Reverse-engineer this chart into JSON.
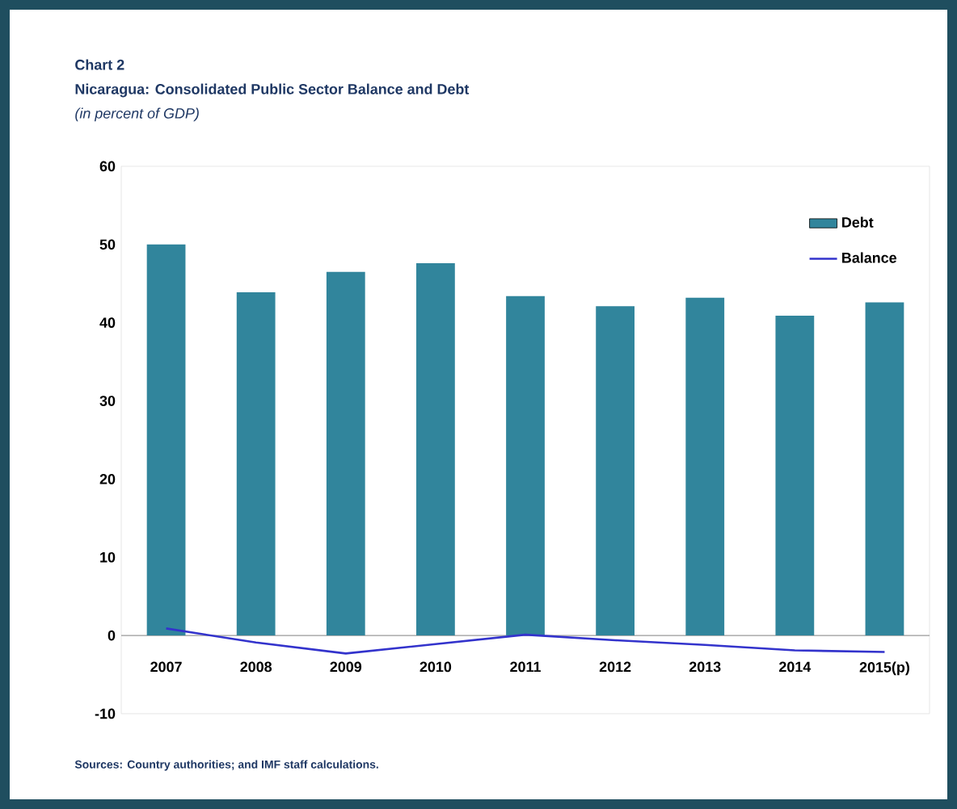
{
  "chart_data": {
    "type": "bar",
    "title": "Nicaragua: Consolidated Public Sector Balance and Debt",
    "subtitle": "(in percent of GDP)",
    "annotations": [
      "Chart 2",
      "Sources: Country authorities; and IMF staff calculations."
    ],
    "categories": [
      "2007",
      "2008",
      "2009",
      "2010",
      "2011",
      "2012",
      "2013",
      "2014",
      "2015(p)"
    ],
    "series": [
      {
        "name": "Debt",
        "color": "#31859c",
        "values": [
          50.0,
          43.9,
          46.5,
          47.6,
          43.4,
          42.1,
          43.2,
          40.9,
          42.6
        ]
      },
      {
        "name": "Balance",
        "type": "line",
        "color": "#3333cc",
        "values": [
          0.9,
          -0.9,
          -2.3,
          -1.1,
          0.1,
          -0.6,
          -1.2,
          -1.9,
          -2.1
        ]
      }
    ],
    "ylim": [
      -10,
      60
    ],
    "yticks": [
      -10,
      0,
      10,
      20,
      30,
      40,
      50,
      60
    ],
    "grid": false,
    "legend": "top right",
    "marker": "none",
    "line_style": "solid"
  }
}
